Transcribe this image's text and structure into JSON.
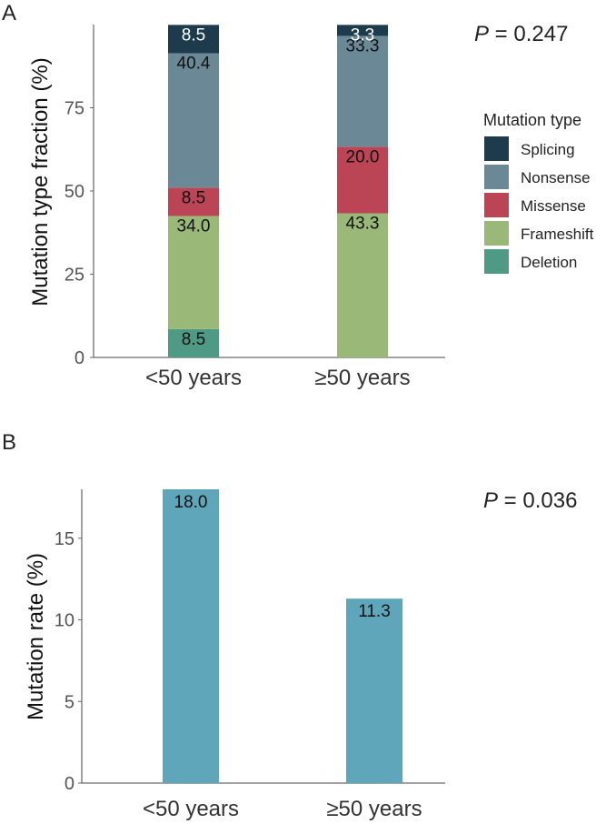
{
  "chart_data": [
    {
      "type": "bar",
      "stacked": true,
      "panel_label": "A",
      "categories": [
        "<50 years",
        "≥50 years"
      ],
      "ylabel": "Mutation type fraction (%)",
      "ylim": [
        0,
        100
      ],
      "yticks": [
        "0",
        "25",
        "50",
        "75"
      ],
      "annotation_prefix": "P",
      "annotation_value": " = 0.247",
      "legend": {
        "title": "Mutation type",
        "placement": "right"
      },
      "series": [
        {
          "name": "Deletion",
          "color": "#4e9a84",
          "values": [
            8.5,
            0
          ]
        },
        {
          "name": "Frameshift",
          "color": "#9ab979",
          "values": [
            34.0,
            43.3
          ]
        },
        {
          "name": "Missense",
          "color": "#bb4555",
          "values": [
            8.5,
            20.0
          ]
        },
        {
          "name": "Nonsense",
          "color": "#6a8896",
          "values": [
            40.4,
            33.3
          ]
        },
        {
          "name": "Splicing",
          "color": "#1e3a4d",
          "values": [
            8.5,
            3.3
          ]
        }
      ],
      "data_labels": [
        [
          "8.5",
          ""
        ],
        [
          "34.0",
          "43.3"
        ],
        [
          "8.5",
          "20.0"
        ],
        [
          "40.4",
          "33.3"
        ],
        [
          "8.5",
          "3.3"
        ]
      ],
      "legend_order": [
        "Splicing",
        "Nonsense",
        "Missense",
        "Frameshift",
        "Deletion"
      ]
    },
    {
      "type": "bar",
      "panel_label": "B",
      "categories": [
        "<50 years",
        "≥50 years"
      ],
      "ylabel": "Mutation rate (%)",
      "ylim": [
        0,
        18
      ],
      "yticks": [
        "0",
        "5",
        "10",
        "15"
      ],
      "values": [
        18.0,
        11.3
      ],
      "data_labels": [
        "18.0",
        "11.3"
      ],
      "color": "#5fa6bb",
      "annotation_prefix": "P",
      "annotation_value": " = 0.036"
    }
  ]
}
